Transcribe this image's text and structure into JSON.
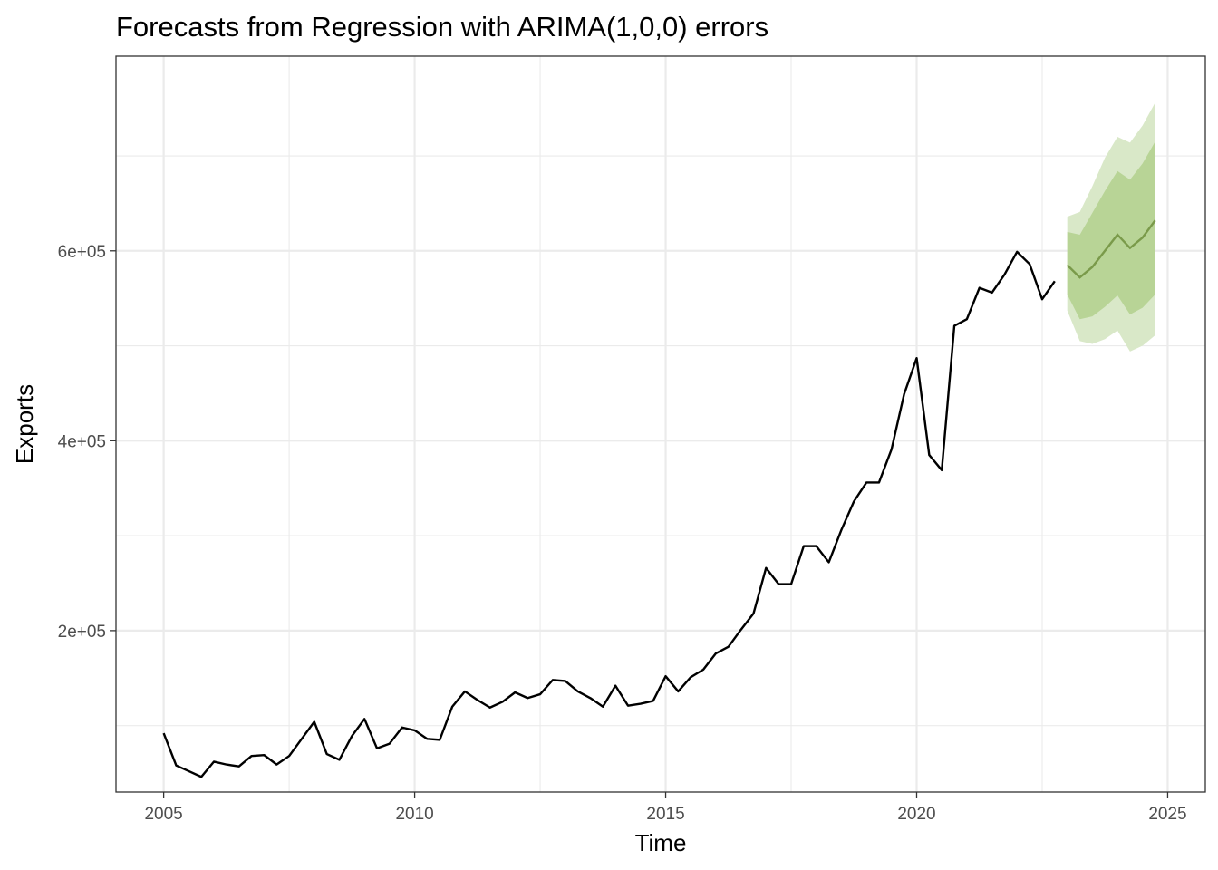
{
  "chart_data": {
    "type": "line",
    "title": "Forecasts from Regression with ARIMA(1,0,0) errors",
    "xlabel": "Time",
    "ylabel": "Exports",
    "xlim": [
      2004.05,
      2025.75
    ],
    "ylim": [
      30000,
      805000
    ],
    "x_ticks": [
      2005,
      2010,
      2015,
      2020,
      2025
    ],
    "x_tick_labels": [
      "2005",
      "2010",
      "2015",
      "2020",
      "2025"
    ],
    "x_minor_ticks": [
      2007.5,
      2012.5,
      2017.5,
      2022.5
    ],
    "y_ticks": [
      200000,
      400000,
      600000
    ],
    "y_tick_labels": [
      "2e+05",
      "4e+05",
      "6e+05"
    ],
    "y_minor_ticks": [
      100000,
      300000,
      500000,
      700000
    ],
    "grid": true,
    "legend": "none",
    "colors": {
      "series": "#000000",
      "forecast": "#7a9a4a",
      "band80": "#b8d496",
      "band95": "#d9e8c8",
      "grid": "#ebebeb",
      "panel_border": "#333333"
    },
    "series": [
      {
        "start": 2005.0,
        "step": 0.25,
        "values": [
          92000,
          58000,
          52000,
          46000,
          62000,
          59000,
          57000,
          68000,
          69000,
          59000,
          68000,
          86000,
          104000,
          70000,
          64000,
          89000,
          107000,
          76000,
          81000,
          98000,
          95000,
          86000,
          85000,
          120000,
          136000,
          127000,
          119000,
          125000,
          135000,
          129000,
          133000,
          148000,
          147000,
          136000,
          129000,
          120000,
          142000,
          121000,
          123000,
          126000,
          152000,
          136000,
          151000,
          159000,
          176000,
          183000,
          201000,
          218000,
          266000,
          249000,
          249000,
          289000,
          289000,
          272000,
          306000,
          336000,
          356000,
          356000,
          391000,
          449000,
          487000,
          385000,
          369000,
          521000,
          528000,
          561000,
          556000,
          575000,
          599000,
          586000,
          549000,
          568000
        ]
      }
    ],
    "forecast": {
      "start": 2023.0,
      "step": 0.25,
      "mean": [
        585000,
        572000,
        583000,
        600000,
        617000,
        603000,
        614000,
        632000
      ],
      "lo80": [
        554000,
        528000,
        531000,
        541000,
        553000,
        533000,
        540000,
        554000
      ],
      "hi80": [
        620000,
        617000,
        640000,
        663000,
        684000,
        675000,
        692000,
        715000
      ],
      "lo95": [
        537000,
        505000,
        502000,
        507000,
        516000,
        494000,
        500000,
        511000
      ],
      "hi95": [
        636000,
        641000,
        668000,
        698000,
        720000,
        714000,
        732000,
        756000
      ]
    }
  }
}
